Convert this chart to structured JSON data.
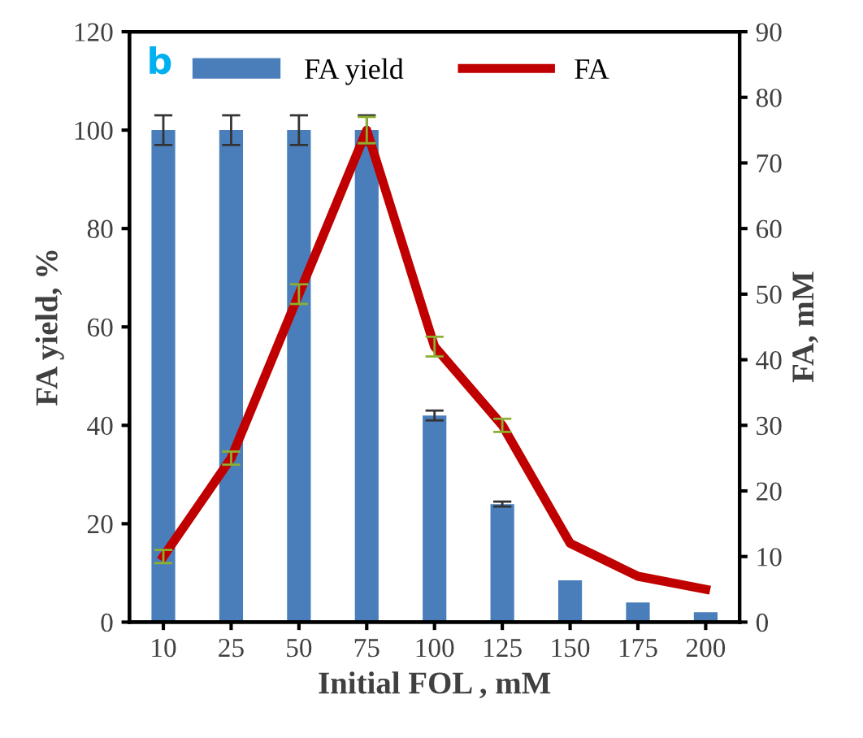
{
  "chart_data": {
    "type": "bar",
    "xlabel": "Initial FOL , mM",
    "ylabel": "FA yield, %",
    "y2label": "FA, mM",
    "categories": [
      "10",
      "25",
      "50",
      "75",
      "100",
      "125",
      "150",
      "175",
      "200"
    ],
    "series": [
      {
        "name": "FA yield",
        "color": "#4a7ebb",
        "values": [
          100,
          100,
          100,
          100,
          42,
          24,
          8.5,
          4,
          2
        ],
        "errors": [
          3,
          3,
          3,
          3,
          1,
          0.5,
          null,
          null,
          null
        ]
      },
      {
        "name": "FA",
        "type": "line",
        "axis": "y2",
        "color": "#c00000",
        "values": [
          10,
          25,
          50,
          75,
          42,
          30,
          12,
          7,
          5
        ],
        "errors": [
          1,
          1,
          1.5,
          2,
          1.5,
          1,
          null,
          null,
          null
        ]
      }
    ],
    "ylim": [
      0,
      120
    ],
    "yticks": [
      0,
      20,
      40,
      60,
      80,
      100,
      120
    ],
    "y2lim": [
      0,
      90
    ],
    "y2ticks": [
      0,
      10,
      20,
      30,
      40,
      50,
      60,
      70,
      80,
      90
    ],
    "legend": "top left",
    "grid": false,
    "annotations": [
      "b"
    ]
  }
}
